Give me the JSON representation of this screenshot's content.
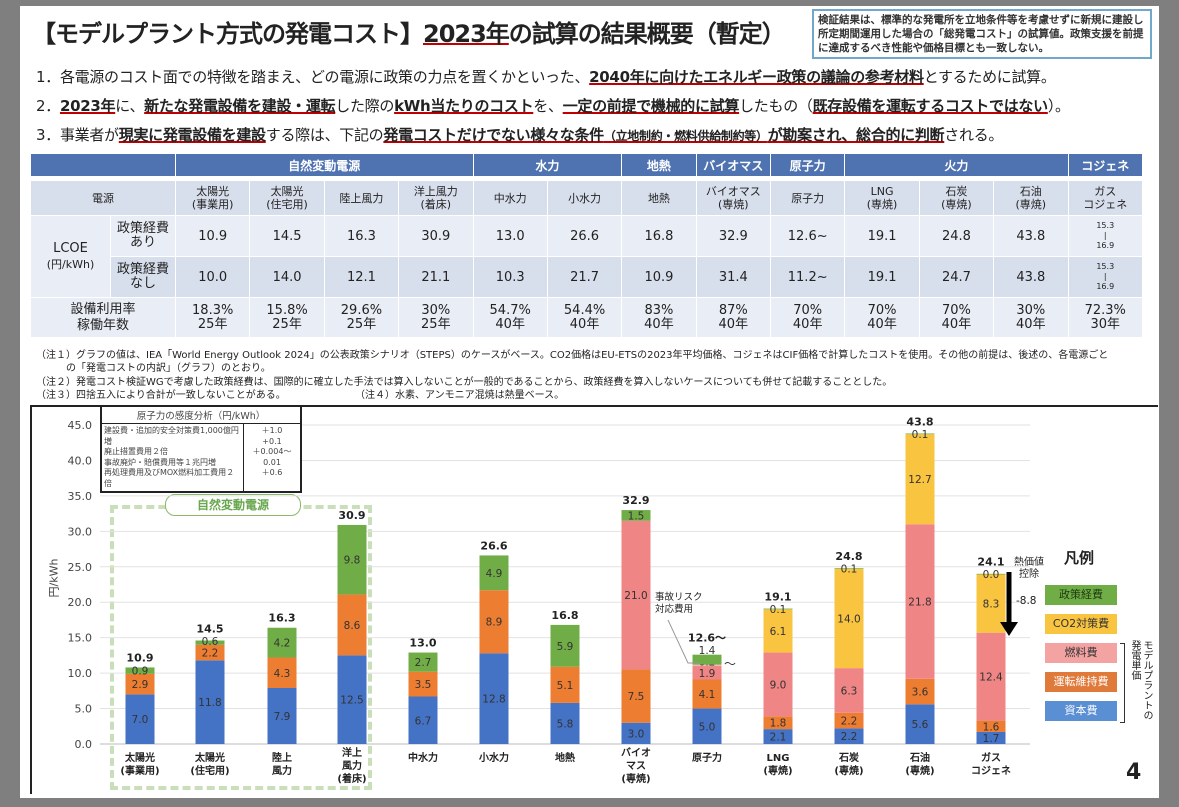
{
  "title": {
    "pre": "【モデルプラント方式の発電コスト】",
    "underlined": "2023年",
    "post": "の試算の結果概要（暫定）"
  },
  "notice": "検証結果は、標準的な発電所を立地条件等を考慮せずに新規に建設し所定期間運用した場合の「総発電コスト」の試算値。政策支援を前提に達成するべき性能や価格目標とも一致しない。",
  "points": [
    [
      {
        "t": "1．各電源のコスト面での特徴を踏まえ、どの電源に政策の力点を置くかといった、"
      },
      {
        "t": "2040年に向けたエネルギー政策の議論の参考材料",
        "em": true
      },
      {
        "t": "とするために試算。"
      }
    ],
    [
      {
        "t": "2．"
      },
      {
        "t": "2023年",
        "em": true
      },
      {
        "t": "に、"
      },
      {
        "t": "新たな発電設備を建設・運転",
        "em": true
      },
      {
        "t": "した際の"
      },
      {
        "t": "kWh当たりのコスト",
        "em": true
      },
      {
        "t": "を、"
      },
      {
        "t": "一定の前提で機械的に試算",
        "em": true
      },
      {
        "t": "したもの（"
      },
      {
        "t": "既存設備を運転するコストではない",
        "em": true
      },
      {
        "t": "）。"
      }
    ],
    [
      {
        "t": "3．事業者が"
      },
      {
        "t": "現実に発電設備を建設",
        "em": true
      },
      {
        "t": "する際は、下記の"
      },
      {
        "t": "発電コストだけでない様々な条件",
        "em": true
      },
      {
        "t": "（立地制約・燃料供給制約等）",
        "em": true,
        "sm": true
      },
      {
        "t": "が勘案され、総合的に判断",
        "em": true
      },
      {
        "t": "される。"
      }
    ]
  ],
  "table": {
    "groups": [
      "自然変動電源",
      "水力",
      "地熱",
      "バイオマス",
      "原子力",
      "火力",
      "コジェネ"
    ],
    "source_label": "電源",
    "sources": [
      "太陽光\n(事業用)",
      "太陽光\n(住宅用)",
      "陸上風力",
      "洋上風力\n(着床)",
      "中水力",
      "小水力",
      "地熱",
      "バイオマス\n(専焼)",
      "原子力",
      "LNG\n(専焼)",
      "石炭\n(専焼)",
      "石油\n(専焼)",
      "ガス\nコジェネ"
    ],
    "lcoe_label": "LCOE",
    "lcoe_unit": "(円/kWh)",
    "with_policy_label": "政策経費\nあり",
    "without_policy_label": "政策経費\nなし",
    "with_policy": [
      "10.9",
      "14.5",
      "16.3",
      "30.9",
      "13.0",
      "26.6",
      "16.8",
      "32.9",
      "12.6~",
      "19.1",
      "24.8",
      "43.8",
      "15.3\n|\n16.9"
    ],
    "without_policy": [
      "10.0",
      "14.0",
      "12.1",
      "21.1",
      "10.3",
      "21.7",
      "10.9",
      "31.4",
      "11.2~",
      "19.1",
      "24.7",
      "43.8",
      "15.3\n|\n16.9"
    ],
    "util_label": "設備利用率\n稼働年数",
    "util": [
      "18.3%\n25年",
      "15.8%\n25年",
      "29.6%\n25年",
      "30%\n25年",
      "54.7%\n40年",
      "54.4%\n40年",
      "83%\n40年",
      "87%\n40年",
      "70%\n40年",
      "70%\n40年",
      "70%\n40年",
      "30%\n40年",
      "72.3%\n30年"
    ]
  },
  "notes": [
    "（注１）グラフの値は、IEA「World Energy Outlook 2024」の公表政策シナリオ（STEPS）のケースがベース。CO2価格はEU-ETSの2023年平均価格、コジェネはCIF価格で計算したコストを使用。その他の前提は、後述の、各電源ごと",
    "　　　の「発電コストの内訳」（グラフ）のとおり。",
    "（注２）発電コスト検証WGで考慮した政策経費は、国際的に確立した手法では算入しないことが一般的であることから、政策経費を算入しないケースについても併せて記載することとした。",
    "（注３）四捨五入により合計が一致しないことがある。",
    "（注４）水素、アンモニア混焼は熱量ベース。"
  ],
  "sensitivity": {
    "title": "原子力の感度分析（円/kWh）",
    "items": [
      {
        "label": "建設費・追加的安全対策費1,000億円増",
        "value": "＋1.0"
      },
      {
        "label": "廃止措置費用２倍",
        "value": "+0.1"
      },
      {
        "label": "事故廃炉・賠償費用等１兆円増",
        "value": "＋0.004～0.01"
      },
      {
        "label": "再処理費用及びMOX燃料加工費用２倍",
        "value": "＋0.6"
      }
    ]
  },
  "chart_data": {
    "type": "bar",
    "stacked": true,
    "ylabel": "円/kWh",
    "ylim": [
      0,
      45
    ],
    "yticks": [
      "0.0",
      "5.0",
      "10.0",
      "15.0",
      "20.0",
      "25.0",
      "30.0",
      "35.0",
      "40.0",
      "45.0"
    ],
    "grid": true,
    "legend_title": "凡例",
    "legend_position": "right",
    "group_label": "自然変動電源",
    "categories": [
      "太陽光\n(事業用)",
      "太陽光\n(住宅用)",
      "陸上\n風力",
      "洋上\n風力\n(着床)",
      "中水力",
      "小水力",
      "地熱",
      "バイオ\nマス\n(専焼)",
      "原子力",
      "LNG\n(専焼)",
      "石炭\n(専焼)",
      "石油\n(専焼)",
      "ガス\nコジェネ"
    ],
    "totals": [
      "10.9",
      "14.5",
      "16.3",
      "30.9",
      "13.0",
      "26.6",
      "16.8",
      "32.9",
      "12.6～",
      "19.1",
      "24.8",
      "43.8",
      "24.1"
    ],
    "series": [
      {
        "name": "資本費",
        "color": "#4472c4",
        "values": [
          7.0,
          11.8,
          7.9,
          12.5,
          6.7,
          12.8,
          5.8,
          3.0,
          5.0,
          2.1,
          2.2,
          5.6,
          1.7
        ]
      },
      {
        "name": "運転維持費",
        "color": "#ed7d31",
        "values": [
          2.9,
          2.2,
          4.3,
          8.6,
          3.5,
          8.9,
          5.1,
          7.5,
          4.1,
          1.8,
          2.2,
          3.6,
          1.6
        ]
      },
      {
        "name": "燃料費",
        "color": "#f08585",
        "values": [
          null,
          null,
          null,
          null,
          null,
          null,
          null,
          21.0,
          1.9,
          9.0,
          6.3,
          21.8,
          12.4
        ]
      },
      {
        "name": "事故リスク対応費用",
        "color": "#f4b6b6",
        "values": [
          null,
          null,
          null,
          null,
          null,
          null,
          null,
          null,
          0.2,
          null,
          null,
          null,
          null
        ]
      },
      {
        "name": "CO2対策費",
        "color": "#f9c440",
        "values": [
          null,
          null,
          null,
          null,
          null,
          null,
          null,
          null,
          null,
          6.1,
          14.0,
          12.7,
          8.3
        ]
      },
      {
        "name": "政策経費",
        "color": "#70ad47",
        "values": [
          0.9,
          0.6,
          4.2,
          9.8,
          2.7,
          4.9,
          5.9,
          1.5,
          1.4,
          0.1,
          0.1,
          0.1,
          0.0
        ]
      }
    ],
    "annotations": {
      "accident_risk": "事故リスク\n対応費用",
      "nuclear_tilde": "～",
      "heat_deduction_label": "熱価値\n控除",
      "heat_deduction_value": "-8.8"
    },
    "legend": [
      "政策経費",
      "CO2対策費",
      "燃料費",
      "運転維持費",
      "資本費"
    ],
    "legend_bracket_label": "モデルプラントの\n発電単価"
  },
  "page_number": "4"
}
